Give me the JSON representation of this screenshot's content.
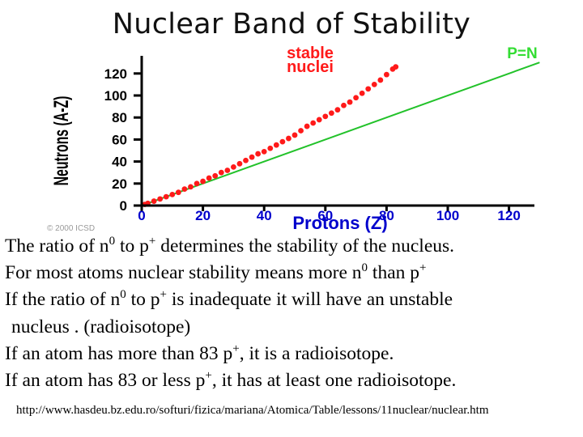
{
  "slide": {
    "title": "Nuclear Band of Stability"
  },
  "chart_data": {
    "type": "scatter",
    "xlabel": "Protons   (Z)",
    "ylabel": "Neutrons (A-Z)",
    "xlim": [
      0,
      130
    ],
    "ylim": [
      0,
      130
    ],
    "x_ticks": [
      "0",
      "20",
      "40",
      "60",
      "80",
      "100",
      "120"
    ],
    "y_ticks": [
      "0",
      "20",
      "40",
      "60",
      "80",
      "100",
      "120"
    ],
    "copyright": "© 2000 ICSD",
    "colors": {
      "stable": "#ff1a1a",
      "reference": "#22c22a",
      "axis": "#000000",
      "tick_text": "#0000cc",
      "band_label": "#ff1a1a",
      "ref_label": "#33dd33"
    },
    "series": [
      {
        "name": "stable nuclei",
        "x": [
          1,
          2,
          4,
          6,
          8,
          10,
          12,
          14,
          16,
          18,
          20,
          22,
          24,
          26,
          28,
          30,
          32,
          34,
          36,
          38,
          40,
          42,
          44,
          46,
          48,
          50,
          52,
          54,
          56,
          58,
          60,
          62,
          64,
          66,
          68,
          70,
          72,
          74,
          76,
          78,
          80,
          82,
          83
        ],
        "y": [
          1,
          2,
          4,
          6,
          8,
          10,
          12,
          15,
          17,
          20,
          22,
          25,
          27,
          30,
          32,
          35,
          38,
          41,
          44,
          47,
          49,
          52,
          55,
          58,
          61,
          64,
          68,
          72,
          75,
          78,
          81,
          84,
          87,
          91,
          94,
          98,
          102,
          106,
          110,
          114,
          119,
          124,
          126
        ]
      },
      {
        "name": "P=N",
        "x": [
          0,
          130
        ],
        "y": [
          0,
          130
        ]
      }
    ]
  },
  "text": {
    "l1": {
      "a": "The ratio of n",
      "b": "0",
      "c": " to p",
      "d": "+",
      "e": " determines the stability of the nucleus."
    },
    "l2": {
      "a": "For most atoms nuclear stability means more n",
      "b": "0",
      "c": " than p",
      "d": "+"
    },
    "l3": {
      "a": "If the ratio of n",
      "b": "0",
      "c": " to p",
      "d": "+",
      "e": " is inadequate it will have an unstable"
    },
    "l4": "nucleus .  (radioisotope)",
    "l5": {
      "a": "If  an atom has more than 83 p",
      "b": "+",
      "c": ", it is a radioisotope."
    },
    "l6": {
      "a": "If an atom has 83 or less p",
      "b": "+",
      "c": ", it has at least one radioisotope."
    },
    "source_url": "http://www.hasdeu.bz.edu.ro/softuri/fizica/mariana/Atomica/Table/lessons/11nuclear/nuclear.htm"
  }
}
